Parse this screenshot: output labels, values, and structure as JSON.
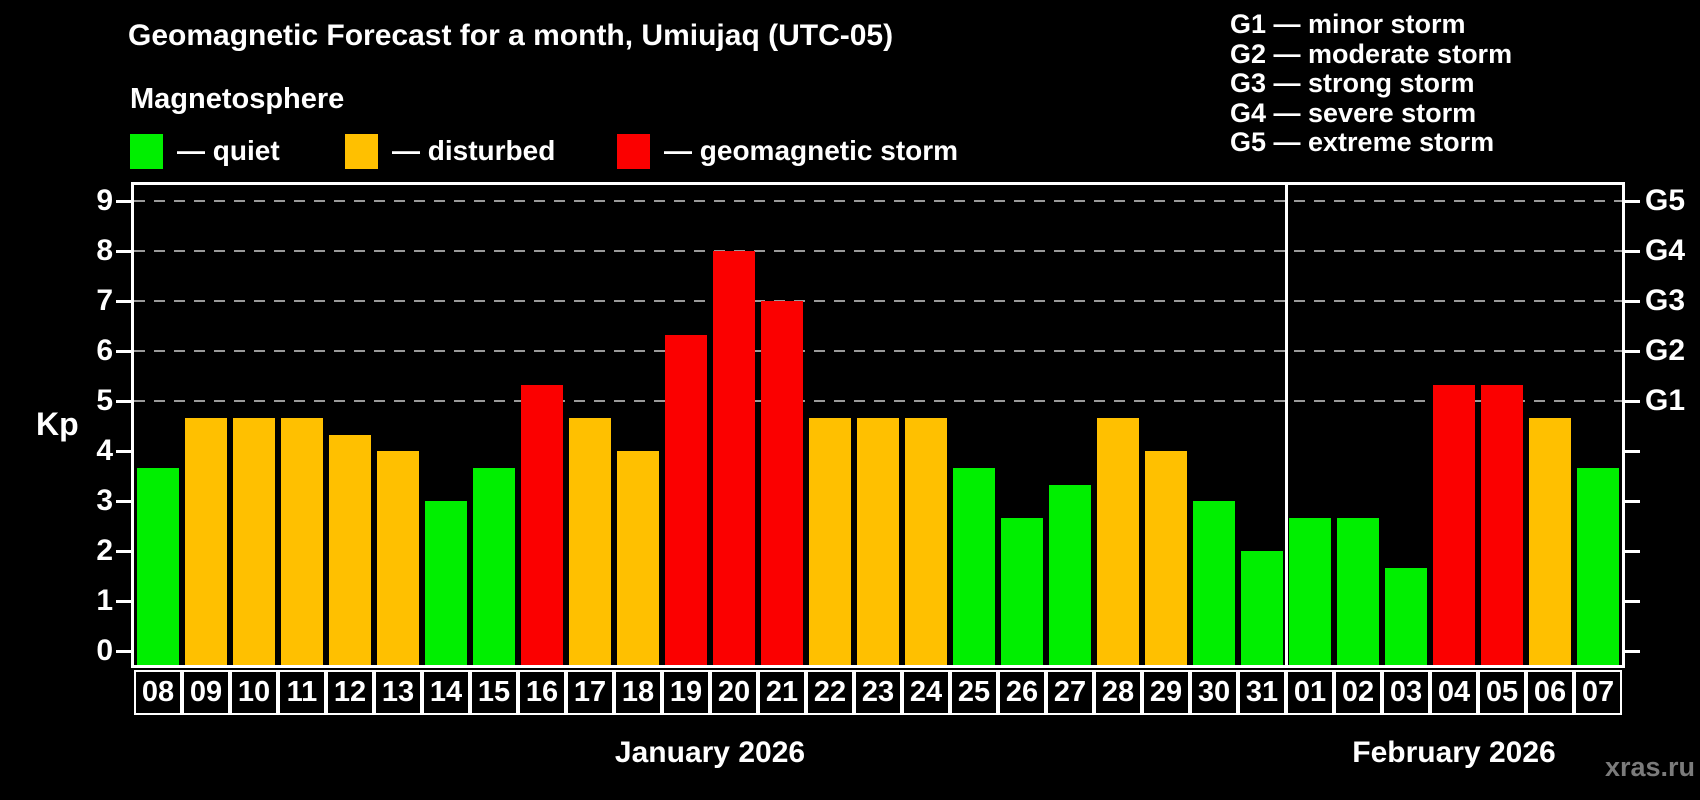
{
  "title": "Geomagnetic Forecast for a month, Umiujaq (UTC-05)",
  "watermark": "xras.ru",
  "legend": {
    "title": "Magnetosphere",
    "items": [
      {
        "key": "quiet",
        "label": "— quiet"
      },
      {
        "key": "disturbed",
        "label": "— disturbed"
      },
      {
        "key": "storm",
        "label": "— geomagnetic storm"
      }
    ]
  },
  "g_legend": [
    "G1 — minor storm",
    "G2 — moderate storm",
    "G3 — strong storm",
    "G4 — severe storm",
    "G5 — extreme storm"
  ],
  "colors": {
    "quiet": "#00ef00",
    "disturbed": "#ffc000",
    "storm": "#fb0000",
    "gridline": "#9a9a9a",
    "axis": "#ffffff"
  },
  "chart_data": {
    "type": "bar",
    "title": "Geomagnetic Forecast for a month, Umiujaq (UTC-05)",
    "ylabel": "Kp",
    "ylim": [
      0,
      9
    ],
    "y_ticks": [
      0,
      1,
      2,
      3,
      4,
      5,
      6,
      7,
      8,
      9
    ],
    "gridlines_at": [
      5,
      6,
      7,
      8,
      9
    ],
    "grid": "dashed horizontal at storm levels only",
    "legend_position": "top",
    "right_axis_labels": [
      {
        "kp": 5,
        "label": "G1"
      },
      {
        "kp": 6,
        "label": "G2"
      },
      {
        "kp": 7,
        "label": "G3"
      },
      {
        "kp": 8,
        "label": "G4"
      },
      {
        "kp": 9,
        "label": "G5"
      }
    ],
    "months": [
      {
        "label": "January 2026",
        "days": [
          {
            "day": "08",
            "kp": 3.67,
            "level": "quiet"
          },
          {
            "day": "09",
            "kp": 4.67,
            "level": "disturbed"
          },
          {
            "day": "10",
            "kp": 4.67,
            "level": "disturbed"
          },
          {
            "day": "11",
            "kp": 4.67,
            "level": "disturbed"
          },
          {
            "day": "12",
            "kp": 4.33,
            "level": "disturbed"
          },
          {
            "day": "13",
            "kp": 4.0,
            "level": "disturbed"
          },
          {
            "day": "14",
            "kp": 3.0,
            "level": "quiet"
          },
          {
            "day": "15",
            "kp": 3.67,
            "level": "quiet"
          },
          {
            "day": "16",
            "kp": 5.33,
            "level": "storm"
          },
          {
            "day": "17",
            "kp": 4.67,
            "level": "disturbed"
          },
          {
            "day": "18",
            "kp": 4.0,
            "level": "disturbed"
          },
          {
            "day": "19",
            "kp": 6.33,
            "level": "storm"
          },
          {
            "day": "20",
            "kp": 8.0,
            "level": "storm"
          },
          {
            "day": "21",
            "kp": 7.0,
            "level": "storm"
          },
          {
            "day": "22",
            "kp": 4.67,
            "level": "disturbed"
          },
          {
            "day": "23",
            "kp": 4.67,
            "level": "disturbed"
          },
          {
            "day": "24",
            "kp": 4.67,
            "level": "disturbed"
          },
          {
            "day": "25",
            "kp": 3.67,
            "level": "quiet"
          },
          {
            "day": "26",
            "kp": 2.67,
            "level": "quiet"
          },
          {
            "day": "27",
            "kp": 3.33,
            "level": "quiet"
          },
          {
            "day": "28",
            "kp": 4.67,
            "level": "disturbed"
          },
          {
            "day": "29",
            "kp": 4.0,
            "level": "disturbed"
          },
          {
            "day": "30",
            "kp": 3.0,
            "level": "quiet"
          },
          {
            "day": "31",
            "kp": 2.0,
            "level": "quiet"
          }
        ]
      },
      {
        "label": "February 2026",
        "days": [
          {
            "day": "01",
            "kp": 2.67,
            "level": "quiet"
          },
          {
            "day": "02",
            "kp": 2.67,
            "level": "quiet"
          },
          {
            "day": "03",
            "kp": 1.67,
            "level": "quiet"
          },
          {
            "day": "04",
            "kp": 5.33,
            "level": "storm"
          },
          {
            "day": "05",
            "kp": 5.33,
            "level": "storm"
          },
          {
            "day": "06",
            "kp": 4.67,
            "level": "disturbed"
          },
          {
            "day": "07",
            "kp": 3.67,
            "level": "quiet"
          }
        ]
      }
    ]
  }
}
